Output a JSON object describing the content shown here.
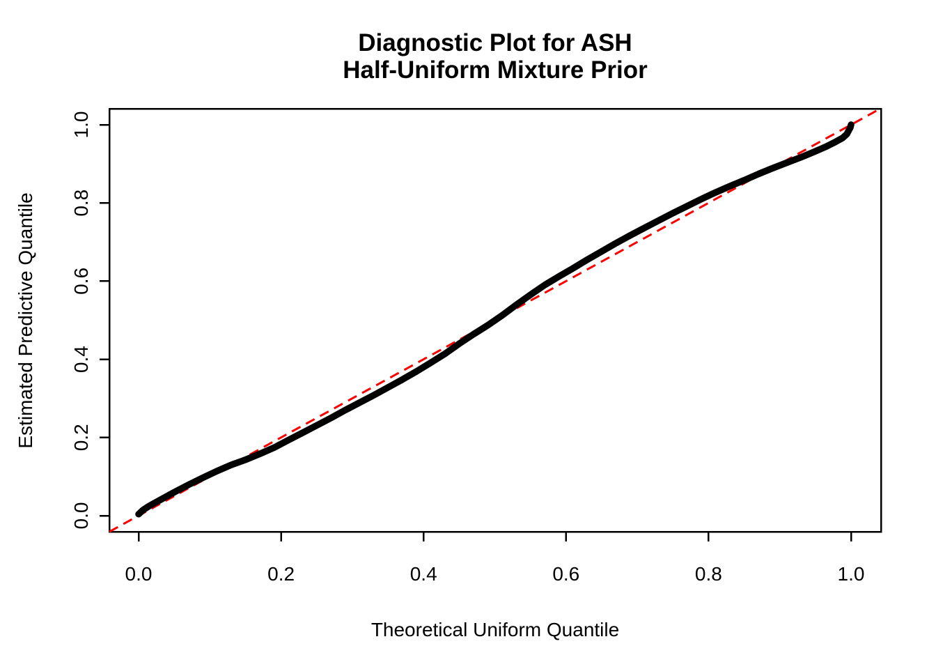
{
  "page": {
    "background_color": "#FFFFFF",
    "foreground_color": "#000000"
  },
  "chart_data": {
    "type": "line",
    "title": "Diagnostic Plot for ASH Half-Uniform Mixture Prior",
    "title_line1": "Diagnostic Plot for ASH",
    "title_line2": "Half-Uniform Mixture Prior",
    "xlabel": "Theoretical Uniform Quantile",
    "ylabel": "Estimated Predictive Quantile",
    "xlim": [
      -0.042,
      1.042
    ],
    "ylim": [
      -0.042,
      1.042
    ],
    "x_ticks": [
      "0.0",
      "0.2",
      "0.4",
      "0.6",
      "0.8",
      "1.0"
    ],
    "y_ticks": [
      "0.0",
      "0.2",
      "0.4",
      "0.6",
      "0.8",
      "1.0"
    ],
    "grid": "off",
    "legend": "none",
    "series": [
      {
        "name": "estimated-predictive-quantiles",
        "style": "thick-point-curve",
        "color": "#000000",
        "points": [
          [
            0.0,
            0.004
          ],
          [
            0.006,
            0.014
          ],
          [
            0.015,
            0.025
          ],
          [
            0.03,
            0.04
          ],
          [
            0.05,
            0.06
          ],
          [
            0.07,
            0.079
          ],
          [
            0.09,
            0.097
          ],
          [
            0.11,
            0.114
          ],
          [
            0.13,
            0.13
          ],
          [
            0.15,
            0.143
          ],
          [
            0.17,
            0.158
          ],
          [
            0.19,
            0.174
          ],
          [
            0.21,
            0.193
          ],
          [
            0.23,
            0.212
          ],
          [
            0.25,
            0.231
          ],
          [
            0.27,
            0.25
          ],
          [
            0.29,
            0.27
          ],
          [
            0.31,
            0.289
          ],
          [
            0.33,
            0.308
          ],
          [
            0.35,
            0.328
          ],
          [
            0.37,
            0.348
          ],
          [
            0.39,
            0.369
          ],
          [
            0.41,
            0.391
          ],
          [
            0.43,
            0.414
          ],
          [
            0.45,
            0.44
          ],
          [
            0.47,
            0.464
          ],
          [
            0.49,
            0.487
          ],
          [
            0.51,
            0.512
          ],
          [
            0.53,
            0.539
          ],
          [
            0.55,
            0.565
          ],
          [
            0.57,
            0.59
          ],
          [
            0.59,
            0.612
          ],
          [
            0.61,
            0.633
          ],
          [
            0.63,
            0.655
          ],
          [
            0.65,
            0.676
          ],
          [
            0.67,
            0.697
          ],
          [
            0.69,
            0.717
          ],
          [
            0.71,
            0.736
          ],
          [
            0.73,
            0.755
          ],
          [
            0.75,
            0.774
          ],
          [
            0.77,
            0.792
          ],
          [
            0.79,
            0.81
          ],
          [
            0.81,
            0.827
          ],
          [
            0.83,
            0.843
          ],
          [
            0.85,
            0.858
          ],
          [
            0.87,
            0.874
          ],
          [
            0.89,
            0.889
          ],
          [
            0.91,
            0.903
          ],
          [
            0.93,
            0.917
          ],
          [
            0.95,
            0.932
          ],
          [
            0.965,
            0.944
          ],
          [
            0.978,
            0.956
          ],
          [
            0.988,
            0.966
          ],
          [
            0.994,
            0.976
          ],
          [
            0.997,
            0.986
          ],
          [
            0.999,
            0.993
          ],
          [
            1.0,
            1.0
          ]
        ]
      }
    ],
    "reference_line": {
      "name": "identity-line",
      "intercept": 0,
      "slope": 1,
      "style": "dashed",
      "color": "#FF0000"
    }
  }
}
